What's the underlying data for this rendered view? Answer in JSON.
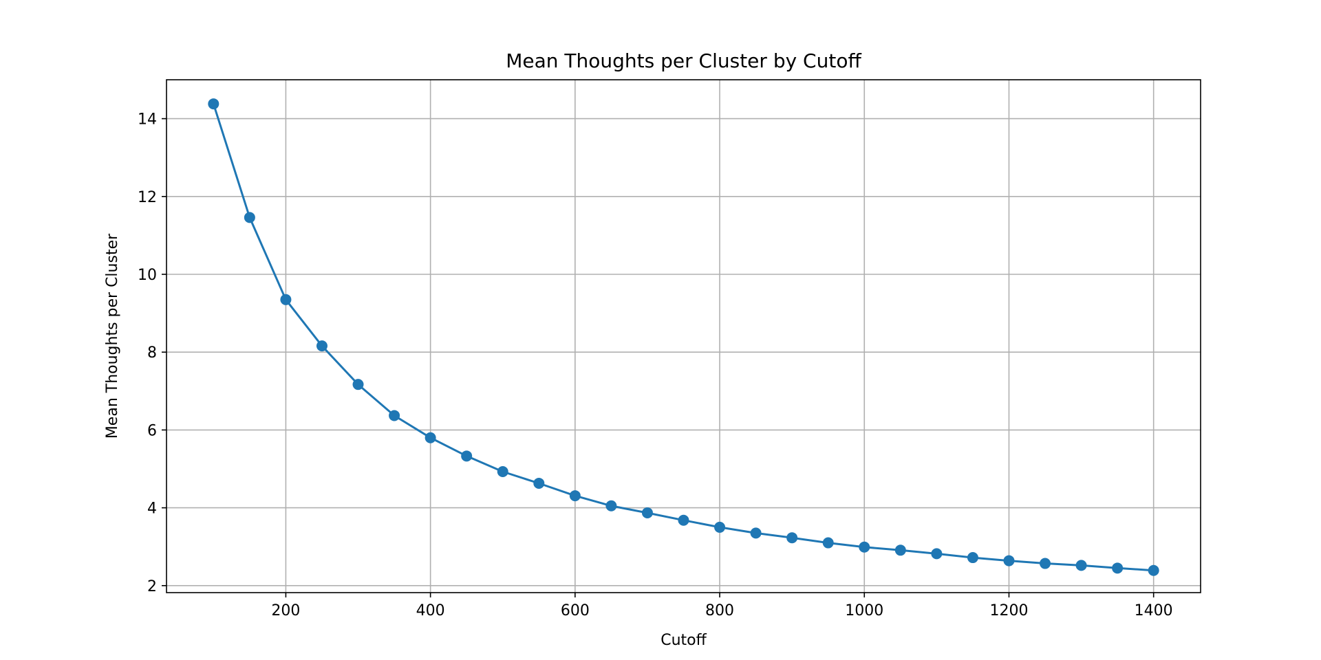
{
  "chart_data": {
    "type": "line",
    "title": "Mean Thoughts per Cluster by Cutoff",
    "xlabel": "Cutoff",
    "ylabel": "Mean Thoughts per Cluster",
    "xlim": [
      35,
      1465
    ],
    "ylim": [
      1.82,
      15.0
    ],
    "xticks": [
      200,
      400,
      600,
      800,
      1000,
      1200,
      1400
    ],
    "yticks": [
      2,
      4,
      6,
      8,
      10,
      12,
      14
    ],
    "grid": true,
    "series": [
      {
        "color": "#1f77b4",
        "marker": "circle",
        "x": [
          100,
          150,
          200,
          250,
          300,
          350,
          400,
          450,
          500,
          550,
          600,
          650,
          700,
          750,
          800,
          850,
          900,
          950,
          1000,
          1050,
          1100,
          1150,
          1200,
          1250,
          1300,
          1350,
          1400
        ],
        "y": [
          14.38,
          11.46,
          9.35,
          8.16,
          7.17,
          6.37,
          5.8,
          5.33,
          4.93,
          4.63,
          4.31,
          4.05,
          3.87,
          3.68,
          3.5,
          3.35,
          3.23,
          3.1,
          2.99,
          2.91,
          2.82,
          2.72,
          2.64,
          2.57,
          2.52,
          2.45,
          2.39
        ]
      }
    ]
  }
}
